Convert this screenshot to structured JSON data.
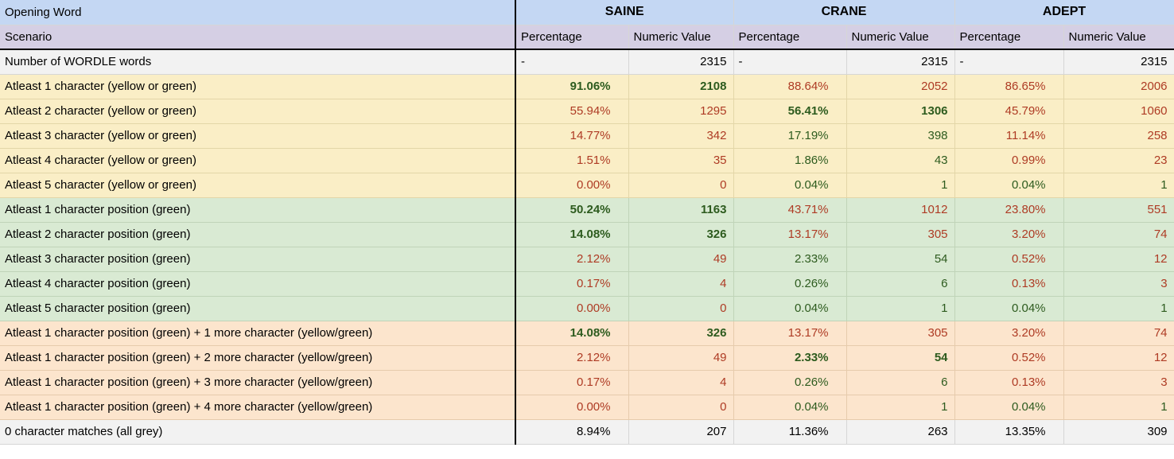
{
  "header": {
    "opening_word_label": "Opening Word",
    "scenario_label": "Scenario",
    "words": [
      "SAINE",
      "CRANE",
      "ADEPT"
    ],
    "subcolumns": {
      "percentage": "Percentage",
      "numeric": "Numeric Value"
    }
  },
  "colors": {
    "header_blue": "#c4d7f3",
    "header_lavender": "#d5cfe4",
    "section_total_grey": "#f2f2f2",
    "section_yellow": "#faeec6",
    "section_green": "#d9ead3",
    "section_orange": "#fce5cd",
    "text_red": "#ae3b24",
    "text_green": "#2d5b1e",
    "text_black": "#000000",
    "thick_border": "#000000"
  },
  "rows": [
    {
      "label": "Number of WORDLE words",
      "section": "total",
      "cells": [
        {
          "text": "-",
          "color": "black",
          "bold": false
        },
        {
          "text": "2315",
          "color": "black",
          "bold": false
        },
        {
          "text": "-",
          "color": "black",
          "bold": false
        },
        {
          "text": "2315",
          "color": "black",
          "bold": false
        },
        {
          "text": "-",
          "color": "black",
          "bold": false
        },
        {
          "text": "2315",
          "color": "black",
          "bold": false
        }
      ]
    },
    {
      "label": "Atleast 1 character (yellow or green)",
      "section": "yellow",
      "cells": [
        {
          "text": "91.06%",
          "color": "green",
          "bold": true
        },
        {
          "text": "2108",
          "color": "green",
          "bold": true
        },
        {
          "text": "88.64%",
          "color": "red",
          "bold": false
        },
        {
          "text": "2052",
          "color": "red",
          "bold": false
        },
        {
          "text": "86.65%",
          "color": "red",
          "bold": false
        },
        {
          "text": "2006",
          "color": "red",
          "bold": false
        }
      ]
    },
    {
      "label": "Atleast 2 character (yellow or green)",
      "section": "yellow",
      "cells": [
        {
          "text": "55.94%",
          "color": "red",
          "bold": false
        },
        {
          "text": "1295",
          "color": "red",
          "bold": false
        },
        {
          "text": "56.41%",
          "color": "green",
          "bold": true
        },
        {
          "text": "1306",
          "color": "green",
          "bold": true
        },
        {
          "text": "45.79%",
          "color": "red",
          "bold": false
        },
        {
          "text": "1060",
          "color": "red",
          "bold": false
        }
      ]
    },
    {
      "label": "Atleast 3 character (yellow or green)",
      "section": "yellow",
      "cells": [
        {
          "text": "14.77%",
          "color": "red",
          "bold": false
        },
        {
          "text": "342",
          "color": "red",
          "bold": false
        },
        {
          "text": "17.19%",
          "color": "green",
          "bold": false
        },
        {
          "text": "398",
          "color": "green",
          "bold": false
        },
        {
          "text": "11.14%",
          "color": "red",
          "bold": false
        },
        {
          "text": "258",
          "color": "red",
          "bold": false
        }
      ]
    },
    {
      "label": "Atleast 4 character (yellow or green)",
      "section": "yellow",
      "cells": [
        {
          "text": "1.51%",
          "color": "red",
          "bold": false
        },
        {
          "text": "35",
          "color": "red",
          "bold": false
        },
        {
          "text": "1.86%",
          "color": "green",
          "bold": false
        },
        {
          "text": "43",
          "color": "green",
          "bold": false
        },
        {
          "text": "0.99%",
          "color": "red",
          "bold": false
        },
        {
          "text": "23",
          "color": "red",
          "bold": false
        }
      ]
    },
    {
      "label": "Atleast 5 character (yellow or green)",
      "section": "yellow",
      "cells": [
        {
          "text": "0.00%",
          "color": "red",
          "bold": false
        },
        {
          "text": "0",
          "color": "red",
          "bold": false
        },
        {
          "text": "0.04%",
          "color": "green",
          "bold": false
        },
        {
          "text": "1",
          "color": "green",
          "bold": false
        },
        {
          "text": "0.04%",
          "color": "green",
          "bold": false
        },
        {
          "text": "1",
          "color": "green",
          "bold": false
        }
      ]
    },
    {
      "label": "Atleast 1 character position (green)",
      "section": "green",
      "cells": [
        {
          "text": "50.24%",
          "color": "green",
          "bold": true
        },
        {
          "text": "1163",
          "color": "green",
          "bold": true
        },
        {
          "text": "43.71%",
          "color": "red",
          "bold": false
        },
        {
          "text": "1012",
          "color": "red",
          "bold": false
        },
        {
          "text": "23.80%",
          "color": "red",
          "bold": false
        },
        {
          "text": "551",
          "color": "red",
          "bold": false
        }
      ]
    },
    {
      "label": "Atleast 2 character position (green)",
      "section": "green",
      "cells": [
        {
          "text": "14.08%",
          "color": "green",
          "bold": true
        },
        {
          "text": "326",
          "color": "green",
          "bold": true
        },
        {
          "text": "13.17%",
          "color": "red",
          "bold": false
        },
        {
          "text": "305",
          "color": "red",
          "bold": false
        },
        {
          "text": "3.20%",
          "color": "red",
          "bold": false
        },
        {
          "text": "74",
          "color": "red",
          "bold": false
        }
      ]
    },
    {
      "label": "Atleast 3 character position (green)",
      "section": "green",
      "cells": [
        {
          "text": "2.12%",
          "color": "red",
          "bold": false
        },
        {
          "text": "49",
          "color": "red",
          "bold": false
        },
        {
          "text": "2.33%",
          "color": "green",
          "bold": false
        },
        {
          "text": "54",
          "color": "green",
          "bold": false
        },
        {
          "text": "0.52%",
          "color": "red",
          "bold": false
        },
        {
          "text": "12",
          "color": "red",
          "bold": false
        }
      ]
    },
    {
      "label": "Atleast 4 character position (green)",
      "section": "green",
      "cells": [
        {
          "text": "0.17%",
          "color": "red",
          "bold": false
        },
        {
          "text": "4",
          "color": "red",
          "bold": false
        },
        {
          "text": "0.26%",
          "color": "green",
          "bold": false
        },
        {
          "text": "6",
          "color": "green",
          "bold": false
        },
        {
          "text": "0.13%",
          "color": "red",
          "bold": false
        },
        {
          "text": "3",
          "color": "red",
          "bold": false
        }
      ]
    },
    {
      "label": "Atleast 5 character position (green)",
      "section": "green",
      "cells": [
        {
          "text": "0.00%",
          "color": "red",
          "bold": false
        },
        {
          "text": "0",
          "color": "red",
          "bold": false
        },
        {
          "text": "0.04%",
          "color": "green",
          "bold": false
        },
        {
          "text": "1",
          "color": "green",
          "bold": false
        },
        {
          "text": "0.04%",
          "color": "green",
          "bold": false
        },
        {
          "text": "1",
          "color": "green",
          "bold": false
        }
      ]
    },
    {
      "label": "Atleast 1 character position (green) + 1 more character (yellow/green)",
      "section": "orange",
      "cells": [
        {
          "text": "14.08%",
          "color": "green",
          "bold": true
        },
        {
          "text": "326",
          "color": "green",
          "bold": true
        },
        {
          "text": "13.17%",
          "color": "red",
          "bold": false
        },
        {
          "text": "305",
          "color": "red",
          "bold": false
        },
        {
          "text": "3.20%",
          "color": "red",
          "bold": false
        },
        {
          "text": "74",
          "color": "red",
          "bold": false
        }
      ]
    },
    {
      "label": "Atleast 1 character position (green) + 2 more character (yellow/green)",
      "section": "orange",
      "cells": [
        {
          "text": "2.12%",
          "color": "red",
          "bold": false
        },
        {
          "text": "49",
          "color": "red",
          "bold": false
        },
        {
          "text": "2.33%",
          "color": "green",
          "bold": true
        },
        {
          "text": "54",
          "color": "green",
          "bold": true
        },
        {
          "text": "0.52%",
          "color": "red",
          "bold": false
        },
        {
          "text": "12",
          "color": "red",
          "bold": false
        }
      ]
    },
    {
      "label": "Atleast 1 character position (green) + 3 more character (yellow/green)",
      "section": "orange",
      "cells": [
        {
          "text": "0.17%",
          "color": "red",
          "bold": false
        },
        {
          "text": "4",
          "color": "red",
          "bold": false
        },
        {
          "text": "0.26%",
          "color": "green",
          "bold": false
        },
        {
          "text": "6",
          "color": "green",
          "bold": false
        },
        {
          "text": "0.13%",
          "color": "red",
          "bold": false
        },
        {
          "text": "3",
          "color": "red",
          "bold": false
        }
      ]
    },
    {
      "label": "Atleast 1 character position (green) + 4 more character (yellow/green)",
      "section": "orange",
      "cells": [
        {
          "text": "0.00%",
          "color": "red",
          "bold": false
        },
        {
          "text": "0",
          "color": "red",
          "bold": false
        },
        {
          "text": "0.04%",
          "color": "green",
          "bold": false
        },
        {
          "text": "1",
          "color": "green",
          "bold": false
        },
        {
          "text": "0.04%",
          "color": "green",
          "bold": false
        },
        {
          "text": "1",
          "color": "green",
          "bold": false
        }
      ]
    },
    {
      "label": "0 character matches (all grey)",
      "section": "grey",
      "cells": [
        {
          "text": "8.94%",
          "color": "black",
          "bold": false
        },
        {
          "text": "207",
          "color": "black",
          "bold": false
        },
        {
          "text": "11.36%",
          "color": "black",
          "bold": false
        },
        {
          "text": "263",
          "color": "black",
          "bold": false
        },
        {
          "text": "13.35%",
          "color": "black",
          "bold": false
        },
        {
          "text": "309",
          "color": "black",
          "bold": false
        }
      ]
    }
  ]
}
